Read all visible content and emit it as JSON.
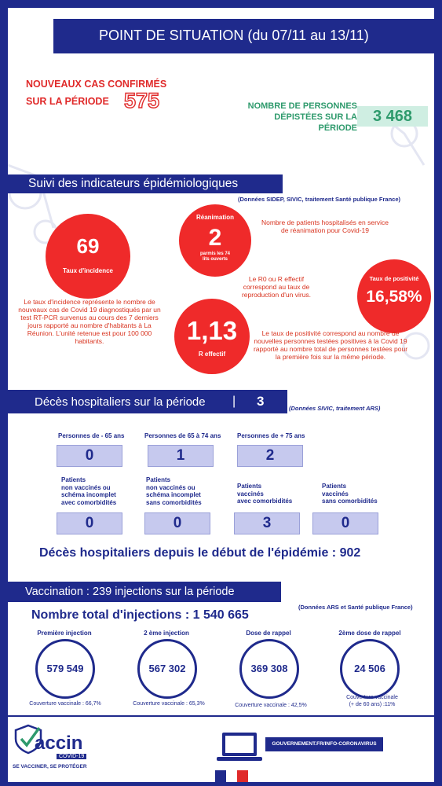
{
  "header": {
    "title": "POINT DE SITUATION (du 07/11 au 13/11)"
  },
  "cases": {
    "label_line1": "NOUVEAUX CAS CONFIRMÉS",
    "label_line2": "SUR LA PÉRIODE",
    "value": "575"
  },
  "screened": {
    "label_line1": "NOMBRE DE PERSONNES",
    "label_line2": "DÉPISTÉES SUR LA",
    "label_line3": "PÉRIODE",
    "value": "3 468"
  },
  "indicators": {
    "title": "Suivi des indicateurs épidémiologiques",
    "source": "(Données SIDEP, SIVIC, traitement Santé publique France)",
    "incidence": {
      "value": "69",
      "label": "Taux d'incidence"
    },
    "incidence_note": "Le taux d'incidence représente le nombre de nouveaux cas de Covid 19 diagnostiqués par un test RT-PCR survenus au cours des 7 derniers jours rapporté au nombre d'habitants à La Réunion. L'unité retenue est pour 100 000 habitants.",
    "reanimation": {
      "title": "Réanimation",
      "value": "2",
      "sub": "parmis les 74 lits ouverts"
    },
    "reanimation_note": "Nombre de patients hospitalisés en service de réanimation pour Covid-19",
    "r_note": "Le R0 ou R effectif correspond au taux de reproduction d'un virus.",
    "r": {
      "value": "1,13",
      "label": "R effectif"
    },
    "positivity": {
      "title": "Taux de positivité",
      "value": "16,58%"
    },
    "positivity_note": "Le taux de positivité correspond au nombre de nouvelles personnes testées positives à la Covid 19 rapporté au nombre total de personnes testées pour la première fois sur la même période."
  },
  "deaths": {
    "title": "Décès hospitaliers sur la période",
    "separator": "|",
    "value": "3",
    "source": "(Données SIVIC, traitement ARS)",
    "age_groups": [
      {
        "label": "Personnes de - 65 ans",
        "value": "0"
      },
      {
        "label": "Personnes de 65 à 74 ans",
        "value": "1"
      },
      {
        "label": "Personnes de + 75 ans",
        "value": "2"
      }
    ],
    "status_groups": [
      {
        "l1": "Patients",
        "l2": "non vaccinés ou",
        "l3": "schéma incomplet",
        "l4": "avec comorbidités",
        "value": "0"
      },
      {
        "l1": "Patients",
        "l2": "non vaccinés ou",
        "l3": "schéma incomplet",
        "l4": "sans comorbidités",
        "value": "0"
      },
      {
        "l1": "Patients",
        "l2": "vaccinés",
        "l3": "avec comorbidités",
        "l4": "",
        "value": "3"
      },
      {
        "l1": "Patients",
        "l2": "vaccinés",
        "l3": "sans comorbidités",
        "l4": "",
        "value": "0"
      }
    ],
    "total_text": "Décès hospitaliers depuis le début de l'épidémie : 902"
  },
  "vaccination": {
    "title": "Vaccination  : 239 injections sur la période",
    "total": "Nombre total d'injections : 1 540 665",
    "source": "(Données ARS et Santé publique France)",
    "items": [
      {
        "label": "Première injection",
        "value": "579 549",
        "coverage": "Couverture vaccinale : 66,7%"
      },
      {
        "label": "2 ème injection",
        "value": "567 302",
        "coverage": "Couverture vaccinale : 65,3%"
      },
      {
        "label": "Dose de rappel",
        "value": "369 308",
        "coverage": "Couverture vaccinale : 42,5%"
      },
      {
        "label": "2ème dose de rappel",
        "value": "24 506",
        "coverage_l1": "Couverture vaccinale",
        "coverage_l2": "(+ de 60 ans) :11%"
      }
    ]
  },
  "footer": {
    "logo_word": "accin",
    "logo_sub": "COVID-19",
    "slogan": "SE VACCINER, SE PROTÉGER",
    "gov_link": "GOUVERNEMENT.FR/INFO-CORONAVIRUS"
  },
  "colors": {
    "navy": "#1f2a8c",
    "red": "#ef2a2a",
    "green": "#2e9a6c",
    "box": "#c6c9ee"
  }
}
